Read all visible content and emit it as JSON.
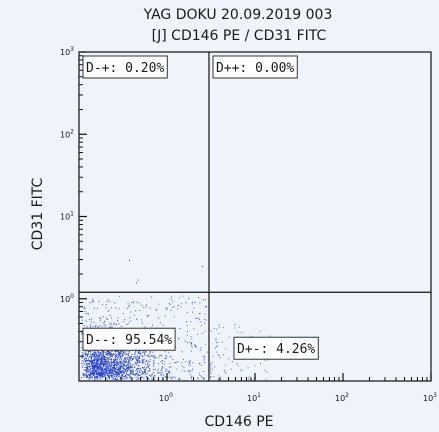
{
  "chart_data": {
    "type": "scatter",
    "title": "YAG DOKU 20.09.2019 003",
    "subtitle": "[J] CD146 PE / CD31 FITC",
    "xlabel": "CD146 PE",
    "ylabel": "CD31 FITC",
    "x_scale": "log",
    "y_scale": "log",
    "xlim": [
      0.1,
      1000
    ],
    "ylim": [
      0.1,
      1000
    ],
    "x_ticks": [
      {
        "value": 1,
        "base": "10",
        "exp": "0"
      },
      {
        "value": 10,
        "base": "10",
        "exp": "1"
      },
      {
        "value": 100,
        "base": "10",
        "exp": "2"
      },
      {
        "value": 1000,
        "base": "10",
        "exp": "3"
      }
    ],
    "y_ticks": [
      {
        "value": 1,
        "base": "10",
        "exp": "0"
      },
      {
        "value": 10,
        "base": "10",
        "exp": "1"
      },
      {
        "value": 100,
        "base": "10",
        "exp": "2"
      },
      {
        "value": 1000,
        "base": "10",
        "exp": "3"
      }
    ],
    "gates": {
      "x_threshold": 3,
      "y_threshold": 1.2
    },
    "quadrants": [
      {
        "id": "upper-left",
        "label": "D-+: 0.20%",
        "name": "D-+",
        "percent": 0.2
      },
      {
        "id": "upper-right",
        "label": "D++: 0.00%",
        "name": "D++",
        "percent": 0.0
      },
      {
        "id": "lower-left",
        "label": "D--: 95.54%",
        "name": "D--",
        "percent": 95.54
      },
      {
        "id": "lower-right",
        "label": "D+-: 4.26%",
        "name": "D+-",
        "percent": 4.26
      }
    ],
    "point_color": "#2a43c9",
    "grid": false,
    "legend": "none"
  }
}
